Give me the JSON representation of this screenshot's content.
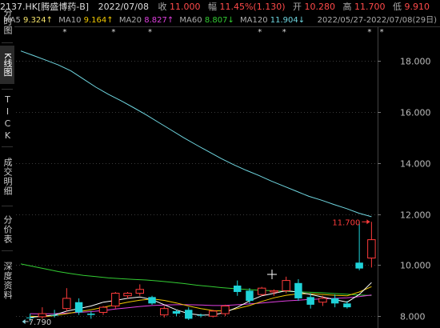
{
  "header": {
    "symbol": "2137.HK[腾盛博药-B]",
    "date": "2022/07/08",
    "close_label": "收",
    "close_value": "11.000",
    "change_label": "幅",
    "change_value": "11.45%(1.130)",
    "open_label": "开",
    "open_value": "10.280",
    "high_label": "高",
    "high_value": "11.700",
    "low_label": "低",
    "low_value": "9.910"
  },
  "ma_bar": {
    "ma5_label": "MA5",
    "ma5_value": "9.324↑",
    "ma10_label": "MA10",
    "ma10_value": "9.164↑",
    "ma20_label": "MA20",
    "ma20_value": "8.827↑",
    "ma60_label": "MA60",
    "ma60_value": "8.807↓",
    "ma120_label": "MA120",
    "ma120_value": "11.904↓",
    "range": "2022/05/27-2022/07/08(29日)"
  },
  "sidebar": {
    "items": [
      {
        "label": "分时图",
        "active": false
      },
      {
        "label": "K线图",
        "active": true
      },
      {
        "label": "TICK",
        "active": false
      },
      {
        "label": "成交明细",
        "active": false
      },
      {
        "label": "分价表",
        "active": false
      },
      {
        "label": "深度资料",
        "active": false
      }
    ]
  },
  "colors": {
    "up": "#ff3b3b",
    "down": "#1fd3d9",
    "ma5": "#ffffff",
    "ma10": "#f0c800",
    "ma20": "#e040e0",
    "ma60": "#33cc33",
    "ma120": "#6fd6e0",
    "grid": "#3a3a3a"
  },
  "chart_data": {
    "type": "candlestick",
    "y_ticks": [
      "18.000",
      "16.000",
      "14.000",
      "12.000",
      "10.000",
      "8.000"
    ],
    "ylim": [
      7.6,
      19.3
    ],
    "high_annotation": "11.700",
    "low_annotation": "7.790",
    "star_marker": "*",
    "star_indices": [
      1,
      5,
      8,
      17,
      19,
      26,
      27
    ],
    "candles": [
      {
        "o": 7.95,
        "h": 8.1,
        "l": 7.79,
        "c": 7.92
      },
      {
        "o": 7.98,
        "h": 8.35,
        "l": 7.9,
        "c": 8.1
      },
      {
        "o": 8.05,
        "h": 8.25,
        "l": 7.95,
        "c": 8.02
      },
      {
        "o": 8.3,
        "h": 9.1,
        "l": 8.2,
        "c": 8.7
      },
      {
        "o": 8.55,
        "h": 8.7,
        "l": 8.05,
        "c": 8.15
      },
      {
        "o": 8.1,
        "h": 8.2,
        "l": 7.9,
        "c": 8.05
      },
      {
        "o": 8.15,
        "h": 8.4,
        "l": 8.05,
        "c": 8.35
      },
      {
        "o": 8.4,
        "h": 8.95,
        "l": 8.3,
        "c": 8.9
      },
      {
        "o": 8.8,
        "h": 8.95,
        "l": 8.7,
        "c": 8.9
      },
      {
        "o": 8.9,
        "h": 9.25,
        "l": 8.8,
        "c": 9.05
      },
      {
        "o": 8.75,
        "h": 8.8,
        "l": 8.45,
        "c": 8.5
      },
      {
        "o": 8.05,
        "h": 8.4,
        "l": 7.95,
        "c": 8.3
      },
      {
        "o": 8.2,
        "h": 8.25,
        "l": 8.0,
        "c": 8.1
      },
      {
        "o": 8.25,
        "h": 8.35,
        "l": 7.85,
        "c": 7.9
      },
      {
        "o": 8.05,
        "h": 8.1,
        "l": 7.95,
        "c": 8.02
      },
      {
        "o": 8.0,
        "h": 8.25,
        "l": 7.95,
        "c": 8.2
      },
      {
        "o": 8.1,
        "h": 8.45,
        "l": 8.0,
        "c": 8.4
      },
      {
        "o": 9.2,
        "h": 9.4,
        "l": 8.8,
        "c": 8.95
      },
      {
        "o": 9.0,
        "h": 9.1,
        "l": 8.5,
        "c": 8.6
      },
      {
        "o": 8.85,
        "h": 9.15,
        "l": 8.8,
        "c": 9.1
      },
      {
        "o": 8.95,
        "h": 9.05,
        "l": 8.8,
        "c": 9.0
      },
      {
        "o": 9.0,
        "h": 9.55,
        "l": 8.9,
        "c": 9.4
      },
      {
        "o": 9.3,
        "h": 9.45,
        "l": 8.6,
        "c": 8.7
      },
      {
        "o": 8.75,
        "h": 8.9,
        "l": 8.3,
        "c": 8.45
      },
      {
        "o": 8.55,
        "h": 8.8,
        "l": 8.4,
        "c": 8.7
      },
      {
        "o": 8.7,
        "h": 8.85,
        "l": 8.35,
        "c": 8.5
      },
      {
        "o": 8.5,
        "h": 8.6,
        "l": 8.3,
        "c": 8.35
      },
      {
        "o": 10.1,
        "h": 11.7,
        "l": 9.8,
        "c": 9.87
      },
      {
        "o": 10.28,
        "h": 11.7,
        "l": 9.91,
        "c": 11.0
      }
    ],
    "ma120": [
      18.4,
      18.22,
      18.04,
      17.85,
      17.62,
      17.3,
      16.98,
      16.7,
      16.45,
      16.18,
      15.9,
      15.6,
      15.3,
      15.0,
      14.72,
      14.45,
      14.18,
      13.94,
      13.72,
      13.52,
      13.3,
      13.1,
      12.9,
      12.7,
      12.55,
      12.38,
      12.22,
      12.04,
      11.9
    ],
    "ma60": [
      10.05,
      9.95,
      9.85,
      9.75,
      9.67,
      9.6,
      9.55,
      9.5,
      9.47,
      9.44,
      9.42,
      9.38,
      9.33,
      9.28,
      9.22,
      9.17,
      9.12,
      9.08,
      9.05,
      9.02,
      9.0,
      8.98,
      8.96,
      8.94,
      8.92,
      8.89,
      8.86,
      8.83,
      8.81
    ],
    "ma20": [
      8.1,
      8.09,
      8.1,
      8.12,
      8.15,
      8.18,
      8.22,
      8.28,
      8.33,
      8.38,
      8.42,
      8.44,
      8.45,
      8.45,
      8.44,
      8.42,
      8.42,
      8.45,
      8.48,
      8.52,
      8.56,
      8.6,
      8.63,
      8.66,
      8.68,
      8.7,
      8.72,
      8.77,
      8.83
    ],
    "ma10": [
      8.0,
      7.98,
      8.02,
      8.1,
      8.18,
      8.25,
      8.35,
      8.45,
      8.55,
      8.63,
      8.68,
      8.62,
      8.52,
      8.4,
      8.3,
      8.22,
      8.2,
      8.3,
      8.42,
      8.58,
      8.72,
      8.82,
      8.88,
      8.88,
      8.85,
      8.82,
      8.8,
      8.95,
      9.16
    ],
    "ma5": [
      7.95,
      8.0,
      8.05,
      8.2,
      8.3,
      8.4,
      8.55,
      8.62,
      8.7,
      8.75,
      8.65,
      8.45,
      8.25,
      8.1,
      8.05,
      8.05,
      8.15,
      8.35,
      8.6,
      8.8,
      8.9,
      9.0,
      8.95,
      8.85,
      8.75,
      8.65,
      8.55,
      8.85,
      9.32
    ]
  }
}
